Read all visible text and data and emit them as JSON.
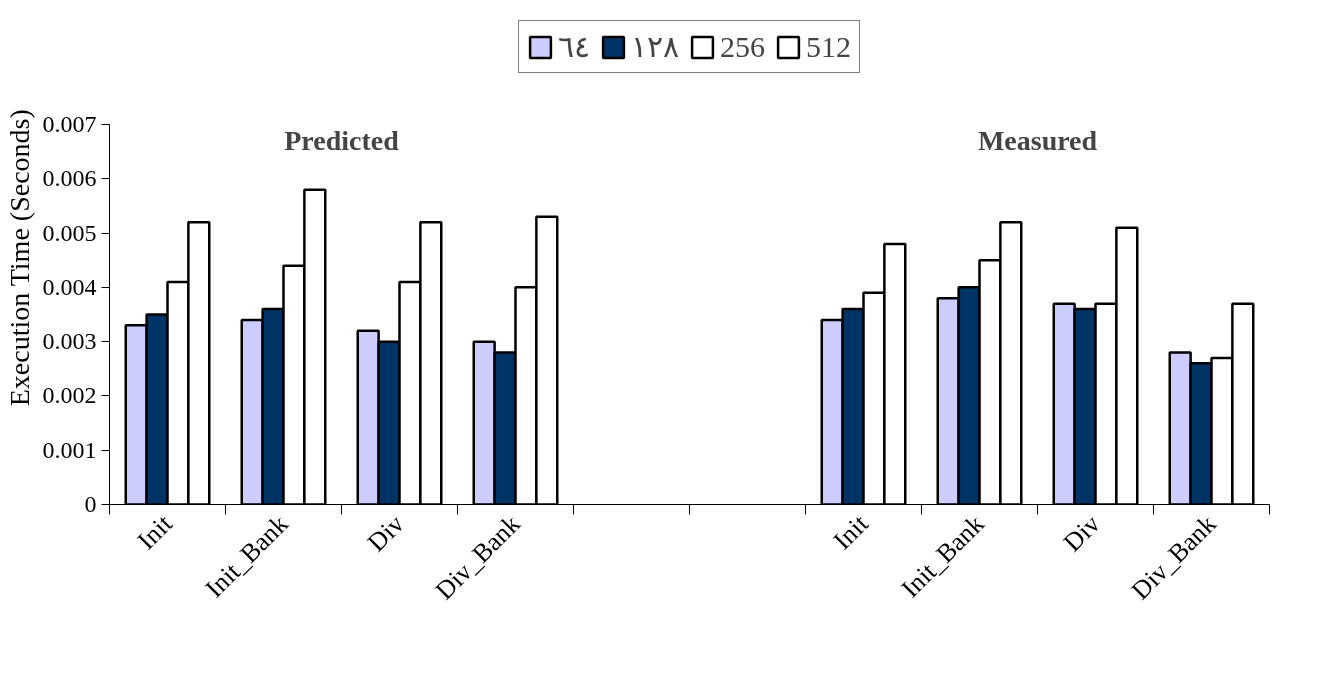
{
  "chart_data": {
    "type": "bar",
    "ylabel": "Execution Time (Seconds)",
    "categories": [
      "Init",
      "Init_Bank",
      "Div",
      "Div_Bank",
      null,
      null,
      "Init",
      "Init_Bank",
      "Div",
      "Div_Bank"
    ],
    "series": [
      {
        "name": "٦٤",
        "color": "#ccccff",
        "values": [
          0.0033,
          0.0034,
          0.0032,
          0.003,
          null,
          null,
          0.0034,
          0.0038,
          0.0037,
          0.0028
        ]
      },
      {
        "name": "١٢٨",
        "color": "#003366",
        "values": [
          0.0035,
          0.0036,
          0.003,
          0.0028,
          null,
          null,
          0.0036,
          0.004,
          0.0036,
          0.0026
        ]
      },
      {
        "name": "256",
        "color": "#ffffff",
        "values": [
          0.0041,
          0.0044,
          0.0041,
          0.004,
          null,
          null,
          0.0039,
          0.0045,
          0.0037,
          0.0027
        ]
      },
      {
        "name": "512",
        "color": "#ffffff",
        "values": [
          0.0052,
          0.0058,
          0.0052,
          0.0053,
          null,
          null,
          0.0048,
          0.0052,
          0.0051,
          0.0037
        ]
      }
    ],
    "annotations": [
      "Predicted",
      "Measured"
    ],
    "ylim": [
      0,
      0.007
    ],
    "yticks": [
      0,
      0.001,
      0.002,
      0.003,
      0.004,
      0.005,
      0.006,
      0.007
    ],
    "grid": false,
    "legend": "top"
  }
}
